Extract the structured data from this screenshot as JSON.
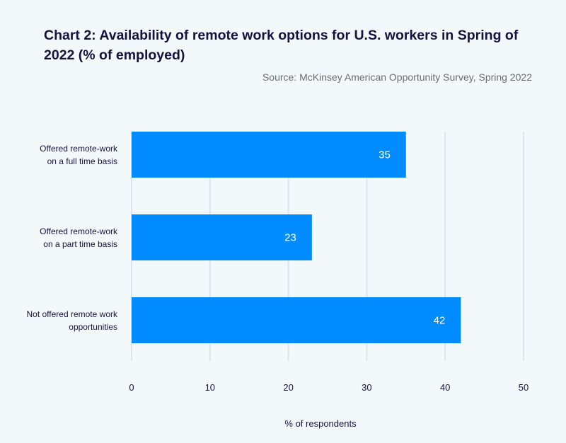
{
  "chart_data": {
    "type": "bar",
    "orientation": "horizontal",
    "title": "Chart 2: Availability of remote work options for U.S. workers in Spring of 2022 (% of employed)",
    "subtitle": "Source: McKinsey American Opportunity Survey, Spring 2022",
    "categories": [
      [
        "Offered remote-work",
        "on a full time basis"
      ],
      [
        "Offered remote-work",
        "on a part time basis"
      ],
      [
        "Not offered remote work",
        "opportunities"
      ]
    ],
    "values": [
      35,
      23,
      42
    ],
    "data_labels": [
      "35",
      "23",
      "42"
    ],
    "xlabel": "% of respondents",
    "ylabel": "",
    "xlim": [
      0,
      50
    ],
    "xticks": [
      "0",
      "10",
      "20",
      "30",
      "40",
      "50"
    ],
    "grid": true,
    "bar_color": "#008cff",
    "grid_color": "#dde3ef"
  }
}
